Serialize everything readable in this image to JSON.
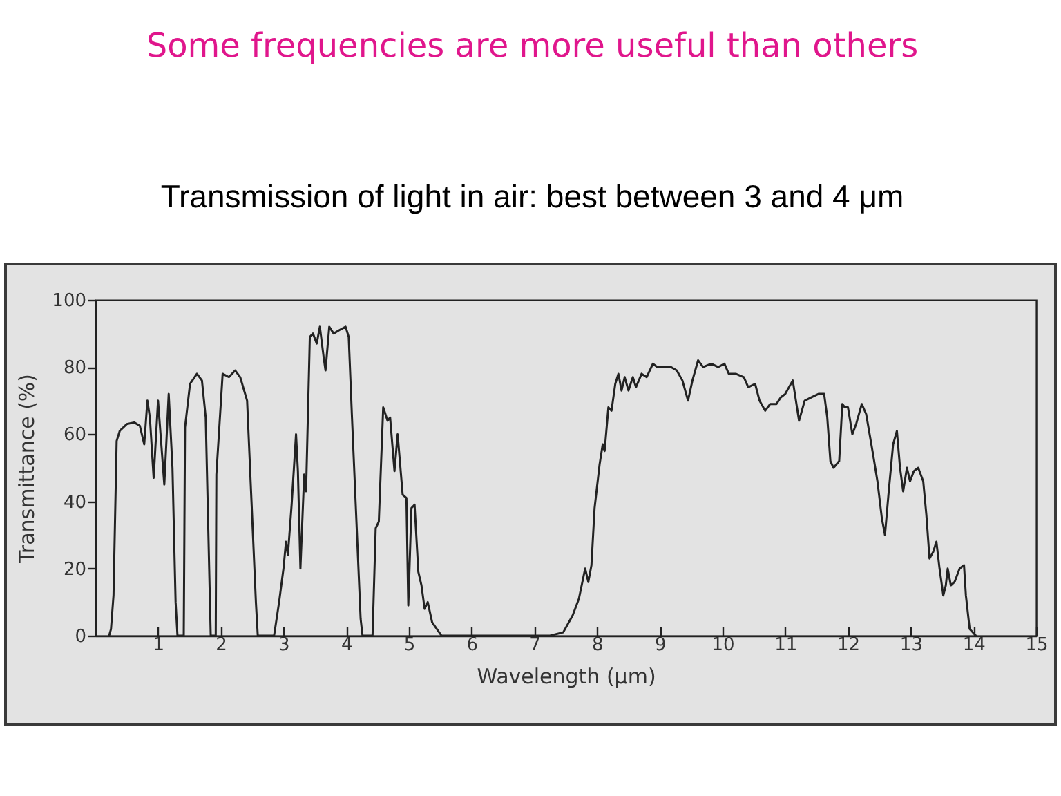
{
  "chart_data": {
    "type": "line",
    "title": "Some frequencies are more useful  than others",
    "subtitle": "Transmission of light in air: best between 3 and 4 μm",
    "xlabel": "Wavelength  (μm)",
    "ylabel": "Transmittance  (%)",
    "xlim": [
      0,
      15
    ],
    "ylim": [
      0,
      100
    ],
    "xticks": [
      1,
      2,
      3,
      4,
      5,
      6,
      7,
      8,
      9,
      10,
      11,
      12,
      13,
      14,
      15
    ],
    "yticks": [
      0,
      20,
      40,
      60,
      80,
      100
    ],
    "series": [
      {
        "color": "#222222",
        "x": [
          0.22,
          0.25,
          0.29,
          0.34,
          0.39,
          0.5,
          0.62,
          0.71,
          0.78,
          0.83,
          0.87,
          0.93,
          1.0,
          1.04,
          1.1,
          1.17,
          1.23,
          1.28,
          1.31,
          1.41,
          1.43,
          1.51,
          1.62,
          1.7,
          1.76,
          1.84,
          1.92,
          1.93,
          2.03,
          2.13,
          2.23,
          2.31,
          2.42,
          2.49,
          2.56,
          2.59,
          2.85,
          2.93,
          3.0,
          3.04,
          3.07,
          3.13,
          3.2,
          3.23,
          3.27,
          3.33,
          3.36,
          3.42,
          3.47,
          3.53,
          3.58,
          3.64,
          3.67,
          3.73,
          3.8,
          3.89,
          3.99,
          4.04,
          4.09,
          4.17,
          4.23,
          4.26,
          4.42,
          4.47,
          4.52,
          4.59,
          4.66,
          4.7,
          4.77,
          4.82,
          4.9,
          4.96,
          4.99,
          5.04,
          5.09,
          5.15,
          5.2,
          5.25,
          5.3,
          5.37,
          5.52,
          7.25,
          7.46,
          7.61,
          7.71,
          7.81,
          7.86,
          7.91,
          7.96,
          8.04,
          8.09,
          8.12,
          8.18,
          8.23,
          8.29,
          8.34,
          8.39,
          8.44,
          8.5,
          8.57,
          8.62,
          8.71,
          8.79,
          8.89,
          8.96,
          9.07,
          9.18,
          9.27,
          9.36,
          9.45,
          9.52,
          9.61,
          9.69,
          9.82,
          9.93,
          10.03,
          10.1,
          10.21,
          10.34,
          10.41,
          10.52,
          10.59,
          10.68,
          10.76,
          10.86,
          10.93,
          11.0,
          11.12,
          11.22,
          11.31,
          11.42,
          11.53,
          11.62,
          11.67,
          11.72,
          11.77,
          11.86,
          11.91,
          11.95,
          12.0,
          12.07,
          12.13,
          12.22,
          12.29,
          12.4,
          12.47,
          12.54,
          12.59,
          12.65,
          12.72,
          12.78,
          12.83,
          12.88,
          12.94,
          12.99,
          13.05,
          13.12,
          13.2,
          13.25,
          13.3,
          13.36,
          13.41,
          13.46,
          13.52,
          13.56,
          13.59,
          13.64,
          13.7,
          13.78,
          13.85,
          13.88,
          13.94,
          14.04
        ],
        "values": [
          0,
          2,
          12,
          58,
          61,
          63,
          63.5,
          62.5,
          57,
          70,
          65,
          47,
          70,
          60,
          45,
          72,
          50,
          10,
          0,
          0,
          62,
          75,
          78,
          76,
          65,
          0,
          0,
          48,
          78,
          77,
          79,
          77,
          70,
          40,
          10,
          0,
          0,
          10,
          20,
          28,
          24,
          39,
          60,
          49,
          20,
          48,
          43,
          89,
          90,
          87,
          92,
          83,
          79,
          92,
          90,
          91,
          92,
          89,
          66,
          31,
          5,
          0,
          0,
          32,
          34,
          68,
          64,
          65,
          49,
          60,
          42,
          41,
          9,
          38,
          39,
          19,
          15,
          8,
          10,
          4,
          0,
          0,
          1,
          6,
          11,
          20,
          16,
          21,
          38,
          51,
          57,
          55,
          68,
          67,
          75,
          78,
          73,
          77,
          73,
          77,
          74,
          78,
          77,
          81,
          80,
          80,
          80,
          79,
          76,
          70,
          76,
          82,
          80,
          81,
          80,
          81,
          78,
          78,
          77,
          74,
          75,
          70,
          67,
          69,
          69,
          71,
          72,
          76,
          64,
          70,
          71,
          72,
          72,
          65,
          52,
          50,
          52,
          69,
          68,
          68,
          60,
          63,
          69,
          66,
          54,
          46,
          35,
          30,
          43,
          57,
          61,
          50,
          43,
          50,
          46,
          49,
          50,
          46,
          36,
          23,
          25,
          28,
          20,
          12,
          15,
          20,
          15,
          16,
          20,
          21,
          12,
          2,
          0
        ]
      }
    ]
  }
}
